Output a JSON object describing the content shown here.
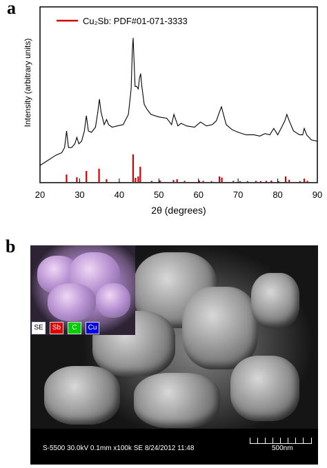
{
  "panel_a": {
    "letter": "a"
  },
  "panel_b": {
    "letter": "b",
    "info_line": "S-5500 30.0kV 0.1mm x100k SE 8/24/2012 11:48",
    "scale_label": "500nm",
    "inset_legend": [
      {
        "label": "SE",
        "color": "#000000",
        "bg": "#ffffff"
      },
      {
        "label": "Sb",
        "color": "#ffffff",
        "bg": "#e00000"
      },
      {
        "label": "C",
        "color": "#ffffff",
        "bg": "#00d000"
      },
      {
        "label": "Cu",
        "color": "#ffffff",
        "bg": "#0000e0"
      }
    ]
  },
  "colors": {
    "pattern_line": "#000000",
    "reference_bars": "#d00000"
  },
  "chart_data": {
    "type": "line",
    "xlabel": "2θ (degrees)",
    "ylabel": "Intensity (arbitrary units)",
    "xlim": [
      20,
      90
    ],
    "xticks": [
      20,
      30,
      40,
      50,
      60,
      70,
      80,
      90
    ],
    "ylim": [
      0,
      100
    ],
    "legend": {
      "label": "Cu₂Sb: PDF#01-071-3333",
      "placement": "top-left"
    },
    "series": [
      {
        "x": [
          20,
          22,
          24,
          25.5,
          26.2,
          26.7,
          27.2,
          28,
          28.8,
          29.3,
          29.8,
          30.5,
          31.2,
          31.7,
          32.2,
          33,
          34,
          34.6,
          35,
          35.4,
          36.2,
          36.8,
          37.3,
          38.2,
          39.5,
          41,
          42.3,
          43,
          43.3,
          43.5,
          43.7,
          44,
          44.4,
          44.8,
          45.1,
          45.4,
          45.7,
          46.3,
          47,
          48,
          50,
          52,
          53.2,
          53.8,
          54.8,
          55.6,
          57,
          59,
          60.5,
          62,
          63.5,
          64.5,
          65.3,
          65.8,
          66.3,
          67,
          68.5,
          70,
          72,
          74,
          75.5,
          76.8,
          78,
          79,
          80,
          81,
          81.8,
          82.3,
          82.9,
          84,
          85.5,
          86.3,
          86.7,
          87.3,
          88.5,
          90
        ],
        "y": [
          0,
          4,
          8,
          10,
          14,
          27,
          14,
          14,
          17,
          22,
          17,
          19,
          27,
          39,
          27,
          26,
          30,
          42,
          52,
          42,
          32,
          36,
          32,
          30,
          31,
          32,
          40,
          60,
          90,
          100,
          85,
          62,
          62,
          60,
          68,
          72,
          62,
          48,
          44,
          40,
          38,
          37,
          32,
          40,
          31,
          33,
          31,
          30,
          34,
          31,
          32,
          35,
          42,
          46,
          40,
          32,
          28,
          26,
          24,
          24,
          23,
          25,
          24,
          29,
          24,
          30,
          35,
          40,
          35,
          27,
          24,
          24,
          29,
          24,
          20,
          19
        ]
      }
    ],
    "reference_peaks": [
      {
        "x": 26.7,
        "h": 27
      },
      {
        "x": 29.3,
        "h": 17
      },
      {
        "x": 31.7,
        "h": 40
      },
      {
        "x": 34.9,
        "h": 48
      },
      {
        "x": 36.8,
        "h": 10
      },
      {
        "x": 43.5,
        "h": 100
      },
      {
        "x": 44.1,
        "h": 15
      },
      {
        "x": 44.8,
        "h": 20
      },
      {
        "x": 45.3,
        "h": 55
      },
      {
        "x": 48.2,
        "h": 4
      },
      {
        "x": 50.3,
        "h": 5
      },
      {
        "x": 53.7,
        "h": 7
      },
      {
        "x": 54.6,
        "h": 10
      },
      {
        "x": 56.5,
        "h": 4
      },
      {
        "x": 60.2,
        "h": 5
      },
      {
        "x": 61.2,
        "h": 4
      },
      {
        "x": 63.3,
        "h": 3
      },
      {
        "x": 65.3,
        "h": 20
      },
      {
        "x": 65.9,
        "h": 16
      },
      {
        "x": 68.8,
        "h": 4
      },
      {
        "x": 70.5,
        "h": 3
      },
      {
        "x": 72.4,
        "h": 3
      },
      {
        "x": 74.5,
        "h": 4
      },
      {
        "x": 75.7,
        "h": 3
      },
      {
        "x": 77.1,
        "h": 4
      },
      {
        "x": 78.4,
        "h": 5
      },
      {
        "x": 80.2,
        "h": 3
      },
      {
        "x": 82.0,
        "h": 20
      },
      {
        "x": 82.9,
        "h": 8
      },
      {
        "x": 85.6,
        "h": 3
      },
      {
        "x": 86.7,
        "h": 12
      },
      {
        "x": 87.5,
        "h": 4
      }
    ]
  }
}
